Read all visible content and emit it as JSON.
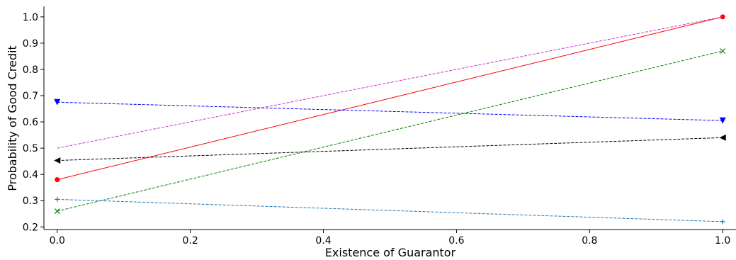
{
  "chart_data": {
    "type": "line",
    "title": "",
    "xlabel": "Existence of Guarantor",
    "ylabel": "Probability of Good Credit",
    "xlim": [
      -0.02,
      1.02
    ],
    "ylim": [
      0.19,
      1.04
    ],
    "xticks": [
      0.0,
      0.2,
      0.4,
      0.6,
      0.8,
      1.0
    ],
    "xtick_labels": [
      "0.0",
      "0.2",
      "0.4",
      "0.6",
      "0.8",
      "1.0"
    ],
    "yticks": [
      0.2,
      0.3,
      0.4,
      0.5,
      0.6,
      0.7,
      0.8,
      0.9,
      1.0
    ],
    "ytick_labels": [
      "0.2",
      "0.3",
      "0.4",
      "0.5",
      "0.6",
      "0.7",
      "0.8",
      "0.9",
      "1.0"
    ],
    "grid": false,
    "series": [
      {
        "x": [
          0,
          1
        ],
        "values": [
          0.38,
          1.0
        ],
        "color": "#ff0000",
        "dash": "solid",
        "marker": "circle"
      },
      {
        "x": [
          0,
          1
        ],
        "values": [
          0.5,
          1.0
        ],
        "color": "#cc33cc",
        "dash": "dashed",
        "marker": "none"
      },
      {
        "x": [
          0,
          1
        ],
        "values": [
          0.26,
          0.87
        ],
        "color": "#008000",
        "dash": "dashed",
        "marker": "x"
      },
      {
        "x": [
          0,
          1
        ],
        "values": [
          0.675,
          0.605
        ],
        "color": "#0000ff",
        "dash": "dashed",
        "marker": "triangle-down"
      },
      {
        "x": [
          0,
          1
        ],
        "values": [
          0.453,
          0.54
        ],
        "color": "#000000",
        "dash": "dashed",
        "marker": "triangle-left"
      },
      {
        "x": [
          0,
          1
        ],
        "values": [
          0.305,
          0.22
        ],
        "color": "#1f77b4",
        "dash": "dashed",
        "marker": "plus"
      }
    ]
  }
}
